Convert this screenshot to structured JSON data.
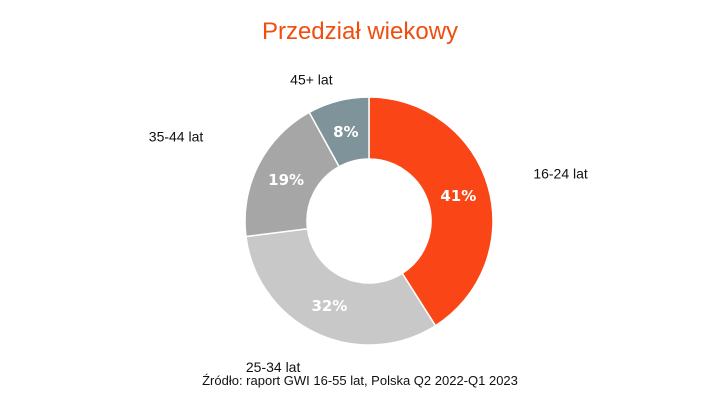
{
  "chart_data": {
    "type": "pie",
    "title": "Przedział wiekowy",
    "source": "Źródło: raport GWI 16-55 lat, Polska Q2 2022-Q1 2023",
    "slices": [
      {
        "label": "16-24 lat",
        "value": 41,
        "value_label": "41%",
        "color": "#fa4616"
      },
      {
        "label": "25-34 lat",
        "value": 32,
        "value_label": "32%",
        "color": "#c8c8c8"
      },
      {
        "label": "35-44 lat",
        "value": 19,
        "value_label": "19%",
        "color": "#a6a6a6"
      },
      {
        "label": "45+ lat",
        "value": 8,
        "value_label": "8%",
        "color": "#7f949a"
      }
    ]
  }
}
